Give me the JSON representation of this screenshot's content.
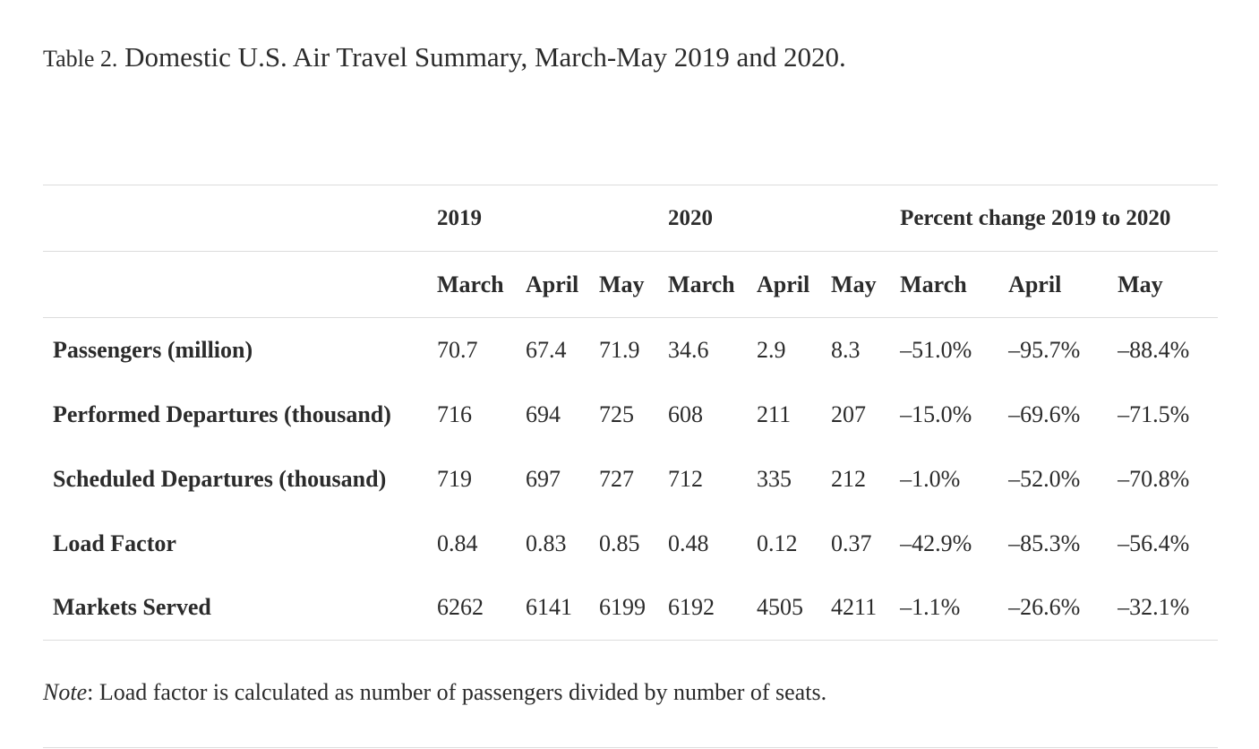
{
  "caption": {
    "label": "Table 2.",
    "title": "Domestic U.S. Air Travel Summary, March-May 2019 and 2020."
  },
  "table": {
    "groups": [
      "2019",
      "2020",
      "Percent change 2019 to 2020"
    ],
    "months": [
      "March",
      "April",
      "May",
      "March",
      "April",
      "May",
      "March",
      "April",
      "May"
    ],
    "rows": [
      {
        "label": "Passengers (million)",
        "cells": [
          "70.7",
          "67.4",
          "71.9",
          "34.6",
          "2.9",
          "8.3",
          "–51.0%",
          "–95.7%",
          "–88.4%"
        ]
      },
      {
        "label": "Performed Departures (thousand)",
        "cells": [
          "716",
          "694",
          "725",
          "608",
          "211",
          "207",
          "–15.0%",
          "–69.6%",
          "–71.5%"
        ]
      },
      {
        "label": "Scheduled Departures (thousand)",
        "cells": [
          "719",
          "697",
          "727",
          "712",
          "335",
          "212",
          "–1.0%",
          "–52.0%",
          "–70.8%"
        ]
      },
      {
        "label": "Load Factor",
        "cells": [
          "0.84",
          "0.83",
          "0.85",
          "0.48",
          "0.12",
          "0.37",
          "–42.9%",
          "–85.3%",
          "–56.4%"
        ]
      },
      {
        "label": "Markets Served",
        "cells": [
          "6262",
          "6141",
          "6199",
          "6192",
          "4505",
          "4211",
          "–1.1%",
          "–26.6%",
          "–32.1%"
        ]
      }
    ]
  },
  "note": {
    "label": "Note",
    "text": ": Load factor is calculated as number of passengers divided by number of seats."
  }
}
